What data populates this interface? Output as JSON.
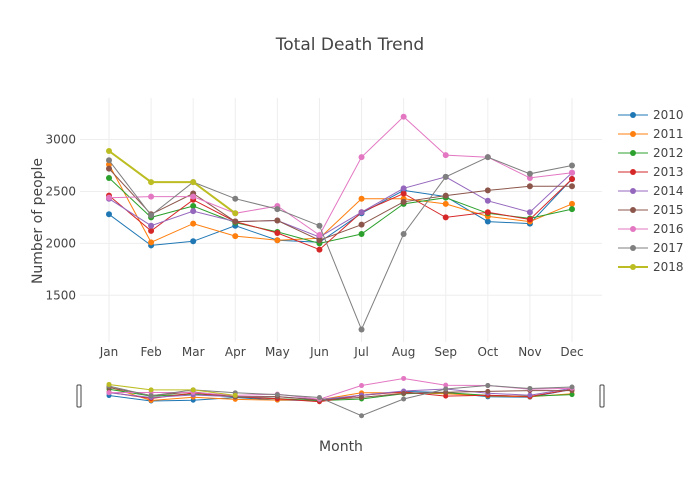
{
  "chart_data": {
    "type": "line",
    "title": "Total Death Trend",
    "xlabel": "Month",
    "ylabel": "Number of people",
    "categories": [
      "Jan",
      "Feb",
      "Mar",
      "Apr",
      "May",
      "Jun",
      "Jul",
      "Aug",
      "Sep",
      "Oct",
      "Nov",
      "Dec"
    ],
    "yticks": [
      "1500",
      "2000",
      "2500",
      "3000"
    ],
    "ylim": [
      1050,
      3400
    ],
    "grid": true,
    "legend_position": "right",
    "has_range_slider": true,
    "series": [
      {
        "name": "2010",
        "color": "#1f77b4",
        "values": [
          2280,
          1980,
          2020,
          2170,
          2030,
          2010,
          2290,
          2510,
          2450,
          2210,
          2190,
          2620
        ]
      },
      {
        "name": "2011",
        "color": "#ff7f0e",
        "values": [
          2760,
          2010,
          2190,
          2070,
          2030,
          2050,
          2430,
          2430,
          2380,
          2260,
          2210,
          2380
        ]
      },
      {
        "name": "2012",
        "color": "#2ca02c",
        "values": [
          2630,
          2250,
          2360,
          2200,
          2110,
          2000,
          2090,
          2380,
          2440,
          2290,
          2240,
          2330
        ]
      },
      {
        "name": "2013",
        "color": "#d62728",
        "values": [
          2460,
          2120,
          2420,
          2210,
          2100,
          1940,
          2300,
          2480,
          2250,
          2300,
          2230,
          2620
        ]
      },
      {
        "name": "2014",
        "color": "#9467bd",
        "values": [
          2430,
          2170,
          2310,
          2210,
          2220,
          2060,
          2300,
          2530,
          2640,
          2410,
          2300,
          2680
        ]
      },
      {
        "name": "2015",
        "color": "#8c564b",
        "values": [
          2720,
          2280,
          2480,
          2210,
          2220,
          2030,
          2180,
          2400,
          2460,
          2510,
          2550,
          2550
        ]
      },
      {
        "name": "2016",
        "color": "#e377c2",
        "values": [
          2440,
          2450,
          2450,
          2290,
          2360,
          2080,
          2830,
          3220,
          2850,
          2830,
          2630,
          2680
        ]
      },
      {
        "name": "2017",
        "color": "#7f7f7f",
        "values": [
          2800,
          2270,
          2590,
          2430,
          2330,
          2170,
          1170,
          2090,
          2640,
          2830,
          2670,
          2750
        ]
      },
      {
        "name": "2018",
        "color": "#bcbd22",
        "values": [
          2890,
          2590,
          2590,
          2290,
          null,
          null,
          null,
          null,
          null,
          null,
          null,
          null
        ]
      }
    ]
  }
}
